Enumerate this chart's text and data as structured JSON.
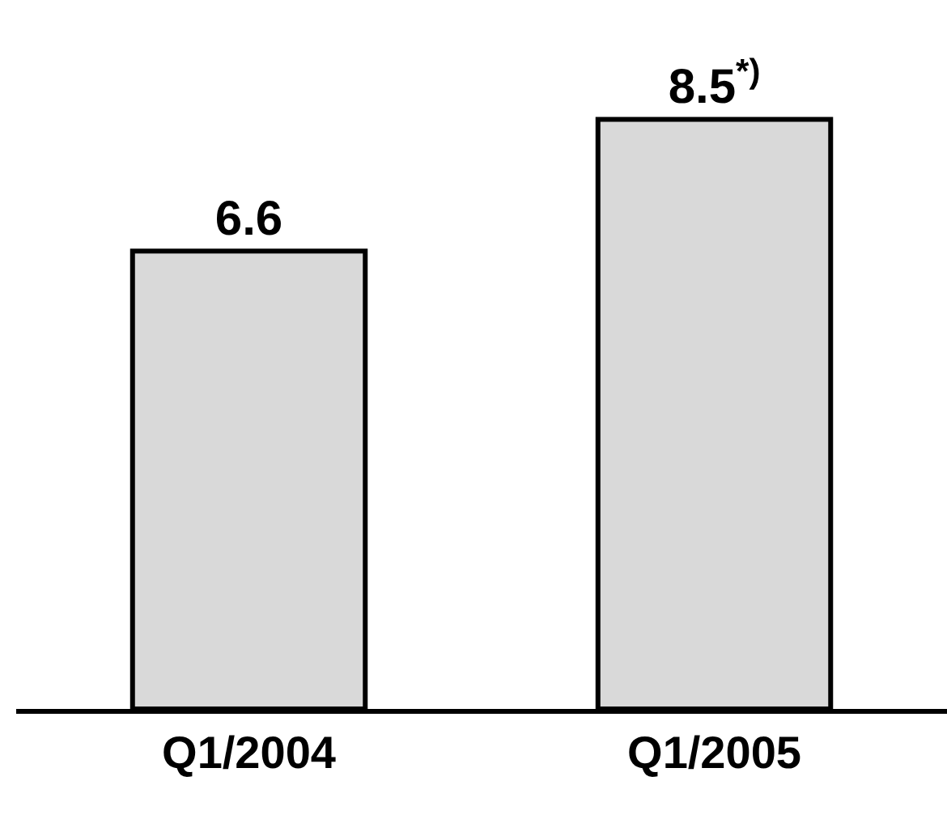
{
  "chart_data": {
    "type": "bar",
    "categories": [
      "Q1/2004",
      "Q1/2005"
    ],
    "values": [
      6.6,
      8.5
    ],
    "color": "#d9d9d9",
    "value_labels": [
      "6.6",
      "8.5$^{*)}$"
    ]
  }
}
